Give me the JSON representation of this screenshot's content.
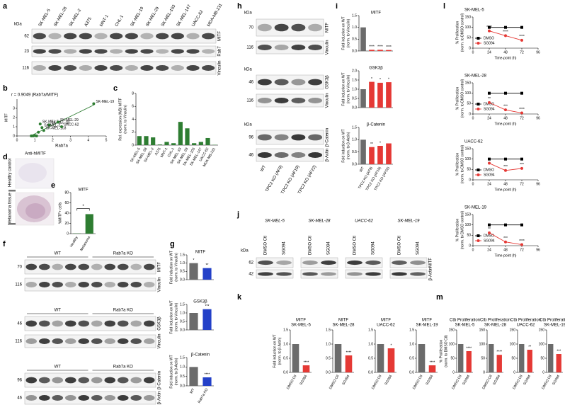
{
  "figure": {
    "panel_labels": [
      "a",
      "b",
      "c",
      "d",
      "e",
      "f",
      "g",
      "h",
      "i",
      "j",
      "k",
      "l",
      "m"
    ],
    "label_colors": {
      "MITF": "#2f8f2f",
      "GSK3β": "#8b3fa6",
      "β-Catenin": "#d6a400"
    },
    "a": {
      "kda": "kDa",
      "lanes": [
        "SK-MEL-5",
        "SK-MEL-28",
        "SK-MEL-2",
        "A375",
        "MNT-1",
        "CHL-1",
        "SK-MEL-19",
        "SK-MEL-29",
        "SK-MEL-103",
        "SK-MEL-147",
        "UACC-62",
        "MDA-MB-231"
      ],
      "markers": [
        "62",
        "23",
        "116"
      ],
      "proteins": [
        "MITF",
        "Rab7",
        "Vinculin"
      ]
    },
    "d": {
      "title": "Anti-hMITF",
      "rows": [
        "Healthy control",
        "Melanoma tissue"
      ]
    },
    "f": {
      "groups": [
        "WT",
        "Rab7a KO"
      ],
      "blots": [
        {
          "markers": [
            "70",
            "116"
          ],
          "proteins": [
            "MITF",
            "Vinculin"
          ]
        },
        {
          "markers": [
            "46",
            "116"
          ],
          "proteins": [
            "GSK3β",
            "Vinculin"
          ]
        },
        {
          "markers": [
            "96",
            "46"
          ],
          "proteins": [
            "β-Catenin",
            "β-Actin"
          ]
        }
      ]
    },
    "h": {
      "kda": "kDa",
      "lanes": [
        "WT",
        "TPC2 KO (AF9)",
        "TPC2 KO (AF19)",
        "TPC2 KO (AF22)"
      ],
      "blots": [
        {
          "markers": [
            "70",
            "116"
          ],
          "proteins": [
            "MITF",
            "Vinculin"
          ]
        },
        {
          "markers": [
            "46",
            "116"
          ],
          "proteins": [
            "GSK3β",
            "Vinculin"
          ]
        },
        {
          "markers": [
            "96",
            "46"
          ],
          "proteins": [
            "β-Catenin",
            "β-Actin"
          ]
        }
      ]
    },
    "j": {
      "kda": "kDa",
      "groups": [
        "SK-MEL-5",
        "SK-MEL-28",
        "UACC-62",
        "SK-MEL-19"
      ],
      "lanes": [
        "DMSO Ctl",
        "SG094"
      ],
      "lane_colors": [
        "#000000",
        "#e02020"
      ],
      "markers": [
        "62",
        "42"
      ],
      "proteins": [
        "MITF",
        "β-Actin"
      ]
    }
  },
  "chart_data": [
    {
      "type": "scatter",
      "title": "r = 0.9049 (Rab7a/MITF)",
      "x_label": "Rab7a",
      "y_label": [
        "MITF"
      ],
      "y_label_color": "#2f8f2f",
      "color": "#2e7d32",
      "x": [
        1.3,
        1.8,
        1.4,
        0.8,
        1.0,
        0.9,
        4.3,
        2.3,
        1.5,
        1.2,
        2.5,
        1.1
      ],
      "y": [
        1.3,
        1.2,
        0.9,
        0.0,
        0.05,
        0.0,
        3.5,
        1.5,
        0.6,
        0.4,
        1.0,
        0.0
      ],
      "point_labels": [
        "SK-MEL-5",
        "SK-MEL-28",
        "SK-MEL-2",
        null,
        null,
        null,
        "SK-MEL-19",
        "SK-MEL-29",
        "SK-MEL-103",
        null,
        "UACC-62",
        null
      ],
      "xlim": [
        0,
        5
      ],
      "xticks": [
        0,
        1,
        2,
        3,
        4,
        5
      ],
      "ylim": [
        0,
        4
      ],
      "yticks": [
        0,
        1,
        2,
        3
      ],
      "trendline": true
    },
    {
      "type": "bar",
      "y_label": [
        "Rel. expression (WB) MITF",
        "(norm. to Vinculin)"
      ],
      "color": "#2e7d32",
      "categories": [
        "SK-MEL-5",
        "SK-MEL-28",
        "SK-MEL-2",
        "A375",
        "MNT-1",
        "CHL-1",
        "SK-MEL-19",
        "SK-MEL-29",
        "SK-MEL-103",
        "SK-MEL-147",
        "UACC-62",
        "MDA-MB-231"
      ],
      "values": [
        1.4,
        1.4,
        1.2,
        0.1,
        0.5,
        0.3,
        3.6,
        2.6,
        0.3,
        0.5,
        1.1,
        0.05
      ],
      "ylim": [
        0,
        8
      ],
      "yticks": [
        0,
        2,
        4,
        6,
        8
      ]
    },
    {
      "type": "bar",
      "title": "MITF",
      "y_label": [
        "%MITF+ cells"
      ],
      "color": "#2e7d32",
      "categories": [
        "Healthy",
        "Melanoma"
      ],
      "values": [
        0.5,
        38
      ],
      "ylim": [
        0,
        80
      ],
      "yticks": [
        0,
        20,
        40,
        60,
        80
      ],
      "annotation": "*"
    },
    {
      "type": "bar",
      "categories": [
        "WT",
        "Rab7a KO"
      ],
      "colors": [
        "#6b6b6b",
        "#2340c8"
      ],
      "star_color": "#000000",
      "series": [
        {
          "name": "MITF",
          "name_color": "#2f8f2f",
          "y_label": [
            "Fold induction on WT",
            "(norm. to Vinculin)"
          ],
          "values": [
            1.0,
            0.7
          ],
          "stars": [
            "*",
            "**"
          ],
          "ylim": [
            0,
            1.5
          ],
          "yticks": [
            {
              "value": 0,
              "label": "0.0"
            },
            0.5,
            {
              "value": 1,
              "label": "1.0"
            },
            1.5
          ]
        },
        {
          "name": "GSK3β",
          "name_color": "#8b3fa6",
          "y_label": [
            "Fold induction on WT",
            "(norm. to Vinculin)"
          ],
          "values": [
            1.0,
            1.22
          ],
          "stars": [
            null,
            "***"
          ],
          "ylim": [
            0,
            1.5
          ],
          "yticks": [
            {
              "value": 0,
              "label": "0.0"
            },
            0.5,
            {
              "value": 1,
              "label": "1.0"
            },
            1.5
          ]
        },
        {
          "name": "β-Catenin",
          "name_color": "#d6a400",
          "y_label": [
            "Fold induction on WT",
            "(norm. to β-Actin)"
          ],
          "values": [
            1.0,
            0.45
          ],
          "stars": [
            null,
            "****"
          ],
          "ylim": [
            0,
            1.5
          ],
          "yticks": [
            {
              "value": 0,
              "label": "0.0"
            },
            0.5,
            {
              "value": 1,
              "label": "1.0"
            },
            1.5
          ]
        }
      ]
    },
    {
      "type": "bar",
      "categories": [
        "WT",
        "TPC2 KO (AF9)",
        "TPC2 KO (AF19)",
        "TPC2 KO (AF22)"
      ],
      "colors": [
        "#6b6b6b",
        "#e53935",
        "#e53935",
        "#e53935"
      ],
      "star_color": "#000000",
      "series": [
        {
          "name": "MITF",
          "name_color": "#2f8f2f",
          "y_label": [
            "Fold induction on WT",
            "(norm. to Vinculin)"
          ],
          "values": [
            1.0,
            0.05,
            0.05,
            0.04
          ],
          "stars": [
            null,
            "****",
            "****",
            "****"
          ],
          "ylim": [
            0,
            1.5
          ],
          "yticks": [
            {
              "value": 0,
              "label": "0.0"
            },
            0.5,
            {
              "value": 1,
              "label": "1.0"
            },
            1.5
          ]
        },
        {
          "name": "GSK3β",
          "name_color": "#8b3fa6",
          "y_label": [
            "Fold induction on WT",
            "(norm. to Vinculin)"
          ],
          "values": [
            1.0,
            1.4,
            1.35,
            1.38
          ],
          "stars": [
            null,
            "*",
            "*",
            "*"
          ],
          "ylim": [
            0,
            2
          ],
          "yticks": [
            {
              "value": 0,
              "label": "0.0"
            },
            0.5,
            {
              "value": 1,
              "label": "1.0"
            },
            1.5,
            {
              "value": 2,
              "label": "2.0"
            }
          ]
        },
        {
          "name": "β-Catenin",
          "name_color": "#d6a400",
          "y_label": [
            "Fold induction on WT",
            "(norm. to β-Actin)"
          ],
          "values": [
            1.0,
            0.7,
            0.75,
            0.85
          ],
          "stars": [
            null,
            "**",
            "*",
            null
          ],
          "ylim": [
            0,
            1.5
          ],
          "yticks": [
            {
              "value": 0,
              "label": "0.0"
            },
            0.5,
            {
              "value": 1,
              "label": "1.0"
            },
            1.5
          ]
        }
      ]
    },
    {
      "type": "bar",
      "title": "MITF",
      "title_color": "#2f8f2f",
      "subtitle": "SK-MEL-5",
      "y_label": [
        "Fold induction on WT",
        "(norm. to β-Actin)"
      ],
      "categories": [
        "DMSO Ctl",
        "SG094"
      ],
      "colors": [
        "#6b6b6b",
        "#e53935"
      ],
      "label_colors": [
        "#000000",
        "#e02020"
      ],
      "star_color": "#e02020",
      "values": [
        1.0,
        0.25
      ],
      "stars": [
        null,
        "****"
      ],
      "ylim": [
        0,
        1.5
      ],
      "yticks": [
        {
          "value": 0,
          "label": "0.0"
        },
        0.5,
        {
          "value": 1,
          "label": "1.0"
        },
        1.5
      ]
    },
    {
      "type": "bar",
      "title": "MITF",
      "title_color": "#2f8f2f",
      "subtitle": "SK-MEL-28",
      "categories": [
        "DMSO Ctl",
        "SG094"
      ],
      "colors": [
        "#6b6b6b",
        "#e53935"
      ],
      "label_colors": [
        "#000000",
        "#e02020"
      ],
      "star_color": "#e02020",
      "values": [
        1.0,
        0.6
      ],
      "stars": [
        null,
        "****"
      ],
      "ylim": [
        0,
        1.5
      ],
      "yticks": [
        {
          "value": 0,
          "label": "0.0"
        },
        0.5,
        {
          "value": 1,
          "label": "1.0"
        },
        1.5
      ]
    },
    {
      "type": "bar",
      "title": "MITF",
      "title_color": "#2f8f2f",
      "subtitle": "UACC-62",
      "categories": [
        "DMSO Ctl",
        "SG094"
      ],
      "colors": [
        "#6b6b6b",
        "#e53935"
      ],
      "label_colors": [
        "#000000",
        "#e02020"
      ],
      "star_color": "#e02020",
      "values": [
        1.0,
        0.85
      ],
      "stars": [
        null,
        "*"
      ],
      "ylim": [
        0,
        1.5
      ],
      "yticks": [
        {
          "value": 0,
          "label": "0.0"
        },
        0.5,
        {
          "value": 1,
          "label": "1.0"
        },
        1.5
      ]
    },
    {
      "type": "bar",
      "title": "MITF",
      "title_color": "#2f8f2f",
      "subtitle": "SK-MEL-19",
      "categories": [
        "DMSO Ctl",
        "SG094"
      ],
      "colors": [
        "#6b6b6b",
        "#e53935"
      ],
      "label_colors": [
        "#000000",
        "#e02020"
      ],
      "star_color": "#e02020",
      "values": [
        1.0,
        0.25
      ],
      "stars": [
        null,
        "****"
      ],
      "ylim": [
        0,
        1.5
      ],
      "yticks": [
        {
          "value": 0,
          "label": "0.0"
        },
        0.5,
        {
          "value": 1,
          "label": "1.0"
        },
        1.5
      ]
    },
    {
      "type": "line",
      "title": "SK-MEL-5",
      "x": [
        24,
        48,
        72
      ],
      "xlim": [
        0,
        96
      ],
      "xticks": [
        0,
        24,
        48,
        72,
        96
      ],
      "ylim": [
        0,
        150
      ],
      "yticks": [
        0,
        50,
        100,
        150
      ],
      "x_label": "Time-point (h)",
      "y_label": [
        "% Proliferation",
        "(norm. to DMSO control)"
      ],
      "legend": "lower-left",
      "series": [
        {
          "name": "DMSO",
          "color": "#000000",
          "marker": "square",
          "values": [
            100,
            100,
            100
          ]
        },
        {
          "name": "SG094",
          "color": "#e53935",
          "marker": "circle",
          "values": [
            83,
            60,
            38
          ],
          "stars": [
            "****",
            "****",
            "****"
          ]
        }
      ]
    },
    {
      "type": "line",
      "title": "SK-MEL-28",
      "x": [
        24,
        48,
        72
      ],
      "xlim": [
        0,
        96
      ],
      "xticks": [
        0,
        24,
        48,
        72,
        96
      ],
      "ylim": [
        0,
        150
      ],
      "yticks": [
        0,
        50,
        100,
        150
      ],
      "x_label": "Time-point (h)",
      "y_label": [
        "% Proliferation",
        "(norm. to DMSO control)"
      ],
      "legend": "lower-left",
      "series": [
        {
          "name": "DMSO",
          "color": "#000000",
          "marker": "square",
          "values": [
            100,
            100,
            100
          ]
        },
        {
          "name": "SG094",
          "color": "#e53935",
          "marker": "circle",
          "values": [
            55,
            20,
            5
          ],
          "stars": [
            "**",
            "***",
            "****"
          ]
        }
      ]
    },
    {
      "type": "line",
      "title": "UACC-62",
      "x": [
        24,
        48,
        72
      ],
      "xlim": [
        0,
        96
      ],
      "xticks": [
        0,
        24,
        48,
        72,
        96
      ],
      "ylim": [
        0,
        150
      ],
      "yticks": [
        0,
        50,
        100,
        150
      ],
      "x_label": "Time-point (h)",
      "y_label": [
        "% Proliferation",
        "(norm. to DMSO control)"
      ],
      "legend": "lower-left",
      "series": [
        {
          "name": "DMSO",
          "color": "#000000",
          "marker": "square",
          "values": [
            100,
            100,
            100
          ]
        },
        {
          "name": "SG094",
          "color": "#e53935",
          "marker": "circle",
          "values": [
            80,
            45,
            55
          ],
          "stars": [
            null,
            "***",
            "***"
          ]
        }
      ]
    },
    {
      "type": "line",
      "title": "SK-MEL-19",
      "x": [
        24,
        48,
        72
      ],
      "xlim": [
        0,
        96
      ],
      "xticks": [
        0,
        24,
        48,
        72,
        96
      ],
      "ylim": [
        0,
        150
      ],
      "yticks": [
        0,
        50,
        100,
        150
      ],
      "x_label": "Time-point (h)",
      "y_label": [
        "% Proliferation",
        "(norm. to DMSO control)"
      ],
      "legend": "lower-left",
      "series": [
        {
          "name": "DMSO",
          "color": "#000000",
          "marker": "square",
          "values": [
            100,
            100,
            100
          ]
        },
        {
          "name": "SG094",
          "color": "#e53935",
          "marker": "circle",
          "values": [
            62,
            18,
            5
          ],
          "stars": [
            "**",
            "***",
            "****"
          ]
        }
      ]
    },
    {
      "type": "bar",
      "title": "Ctb Proliferation",
      "subtitle": "SK-MEL-5",
      "y_label": [
        "% Proliferation",
        "(norm. to DMSO Ctl)"
      ],
      "categories": [
        "DMSO Ctl",
        "SG094"
      ],
      "colors": [
        "#6b6b6b",
        "#e53935"
      ],
      "label_colors": [
        "#000000",
        "#e02020"
      ],
      "star_color": "#e02020",
      "values": [
        100,
        75
      ],
      "stars": [
        null,
        "****"
      ],
      "ylim": [
        0,
        150
      ],
      "yticks": [
        0,
        50,
        100,
        150
      ]
    },
    {
      "type": "bar",
      "title": "Ctb Proliferation",
      "subtitle": "SK-MEL-28",
      "categories": [
        "DMSO Ctl",
        "SG094"
      ],
      "colors": [
        "#6b6b6b",
        "#e53935"
      ],
      "label_colors": [
        "#000000",
        "#e02020"
      ],
      "star_color": "#e02020",
      "values": [
        100,
        62
      ],
      "stars": [
        null,
        "****"
      ],
      "ylim": [
        0,
        150
      ],
      "yticks": [
        0,
        50,
        100,
        150
      ]
    },
    {
      "type": "bar",
      "title": "Ctb Proliferation",
      "subtitle": "UACC-62",
      "categories": [
        "DMSO Ctl",
        "SG094"
      ],
      "colors": [
        "#6b6b6b",
        "#e53935"
      ],
      "label_colors": [
        "#000000",
        "#e02020"
      ],
      "star_color": "#e02020",
      "values": [
        100,
        80
      ],
      "stars": [
        null,
        "**"
      ],
      "ylim": [
        0,
        150
      ],
      "yticks": [
        0,
        50,
        100,
        150
      ]
    },
    {
      "type": "bar",
      "title": "Ctb Proliferation",
      "subtitle": "SK-MEL-19",
      "categories": [
        "DMSO Ctl",
        "SG094"
      ],
      "colors": [
        "#6b6b6b",
        "#e53935"
      ],
      "label_colors": [
        "#000000",
        "#e02020"
      ],
      "star_color": "#e02020",
      "values": [
        100,
        65
      ],
      "stars": [
        null,
        "***"
      ],
      "ylim": [
        0,
        150
      ],
      "yticks": [
        0,
        50,
        100,
        150
      ]
    }
  ]
}
